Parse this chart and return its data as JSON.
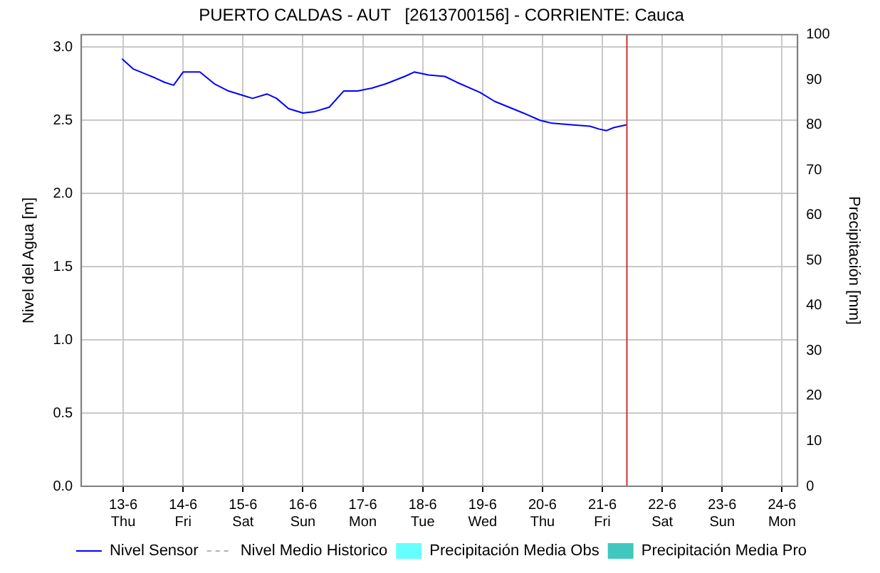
{
  "chart_data": {
    "type": "line",
    "title": "PUERTO CALDAS - AUT   [2613700156] - CORRIENTE: Cauca",
    "ylabel": "Nivel del Agua [m]",
    "y2label": "Precipitación [mm]",
    "xlim": [
      "--06-12T07:12",
      "--06-24T06:14"
    ],
    "xticks": [
      {
        "value": "--06-13",
        "label": "13-6\nThu"
      },
      {
        "value": "--06-14",
        "label": "14-6\nFri"
      },
      {
        "value": "--06-15",
        "label": "15-6\nSat"
      },
      {
        "value": "--06-16",
        "label": "16-6\nSun"
      },
      {
        "value": "--06-17",
        "label": "17-6\nMon"
      },
      {
        "value": "--06-18",
        "label": "18-6\nTue"
      },
      {
        "value": "--06-19",
        "label": "19-6\nWed"
      },
      {
        "value": "--06-20",
        "label": "20-6\nThu"
      },
      {
        "value": "--06-21",
        "label": "21-6\nFri"
      },
      {
        "value": "--06-22",
        "label": "22-6\nSat"
      },
      {
        "value": "--06-23",
        "label": "23-6\nSun"
      },
      {
        "value": "--06-24",
        "label": "24-6\nMon"
      }
    ],
    "ylim": [
      0,
      3.085
    ],
    "yticks": [
      {
        "value": 0,
        "label": "0.0"
      },
      {
        "value": 0.5,
        "label": "0.5"
      },
      {
        "value": 1,
        "label": "1.0"
      },
      {
        "value": 1.5,
        "label": "1.5"
      },
      {
        "value": 2,
        "label": "2.0"
      },
      {
        "value": 2.5,
        "label": "2.5"
      },
      {
        "value": 3,
        "label": "3.0"
      }
    ],
    "y2lim": [
      0,
      100
    ],
    "y2ticks": [
      0,
      10,
      20,
      30,
      40,
      50,
      60,
      70,
      80,
      90,
      100
    ],
    "grid": true,
    "legend": "bottom",
    "marker": "none",
    "ref_lines": [
      {
        "axis": "x",
        "value": "--06-21T09:50",
        "color": "#cc3333"
      }
    ],
    "series": [
      {
        "name": "Nivel Sensor",
        "color": "#0000ff",
        "line_style": "solid",
        "x": [
          "--06-12T23:31",
          "--06-13T04:05",
          "--06-13T09:50",
          "--06-13T12:43",
          "--06-13T16:34",
          "--06-13T20:10",
          "--06-14T00:00",
          "--06-14T06:43",
          "--06-14T12:29",
          "--06-14T18:14",
          "--06-15T00:00",
          "--06-15T03:50",
          "--06-15T09:36",
          "--06-15T13:26",
          "--06-15T18:14",
          "--06-16T00:00",
          "--06-16T04:48",
          "--06-16T10:34",
          "--06-16T16:19",
          "--06-16T21:50",
          "--06-17T03:36",
          "--06-17T09:22",
          "--06-17T16:48",
          "--06-17T20:38",
          "--06-18T02:24",
          "--06-18T08:53",
          "--06-18T13:41",
          "--06-18T23:02",
          "--06-19T04:48",
          "--06-19T10:34",
          "--06-19T16:19",
          "--06-19T23:02",
          "--06-20T03:50",
          "--06-20T11:31",
          "--06-20T18:58",
          "--06-20T22:48",
          "--06-21T01:41",
          "--06-21T04:34",
          "--06-21T09:50"
        ],
        "values": [
          2.92,
          2.85,
          2.81,
          2.79,
          2.76,
          2.74,
          2.83,
          2.83,
          2.75,
          2.7,
          2.67,
          2.65,
          2.68,
          2.65,
          2.58,
          2.55,
          2.56,
          2.59,
          2.7,
          2.7,
          2.72,
          2.75,
          2.8,
          2.83,
          2.81,
          2.8,
          2.76,
          2.69,
          2.63,
          2.59,
          2.55,
          2.5,
          2.48,
          2.47,
          2.46,
          2.44,
          2.43,
          2.45,
          2.47
        ]
      },
      {
        "name": "Nivel Medio Historico",
        "color": "#b0b0b0",
        "line_style": "dashed"
      },
      {
        "name": "Precipitación Media Obs",
        "type": "bar",
        "color": "#66ffff"
      },
      {
        "name": "Precipitación Media Pro",
        "type": "bar",
        "color": "#40c8c0"
      }
    ]
  }
}
